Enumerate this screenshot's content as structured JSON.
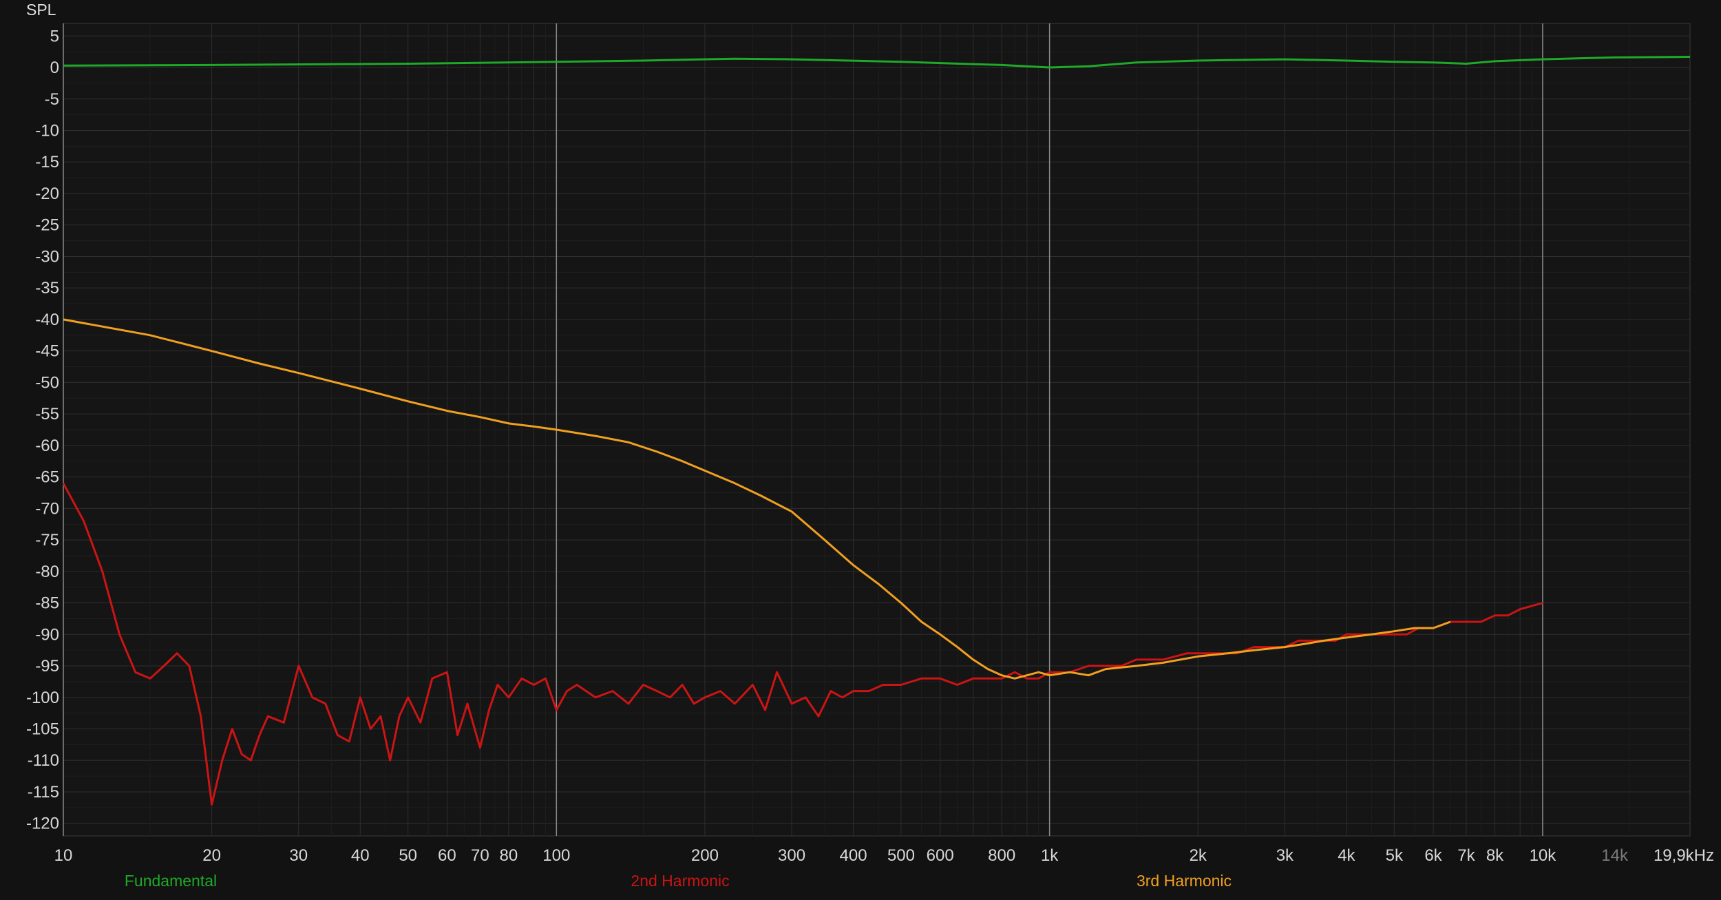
{
  "chart_data": {
    "type": "line",
    "ylabel": "SPL",
    "xscale": "log",
    "xlim": [
      10,
      19900
    ],
    "ylim": [
      -122,
      7
    ],
    "grid": true,
    "y_ticks": [
      5,
      0,
      -5,
      -10,
      -15,
      -20,
      -25,
      -30,
      -35,
      -40,
      -45,
      -50,
      -55,
      -60,
      -65,
      -70,
      -75,
      -80,
      -85,
      -90,
      -95,
      -100,
      -105,
      -110,
      -115,
      -120
    ],
    "x_ticks": [
      {
        "value": 10,
        "label": "10"
      },
      {
        "value": 20,
        "label": "20"
      },
      {
        "value": 30,
        "label": "30"
      },
      {
        "value": 40,
        "label": "40"
      },
      {
        "value": 50,
        "label": "50"
      },
      {
        "value": 60,
        "label": "60"
      },
      {
        "value": 70,
        "label": "70"
      },
      {
        "value": 80,
        "label": "80"
      },
      {
        "value": 100,
        "label": "100"
      },
      {
        "value": 200,
        "label": "200"
      },
      {
        "value": 300,
        "label": "300"
      },
      {
        "value": 400,
        "label": "400"
      },
      {
        "value": 500,
        "label": "500"
      },
      {
        "value": 600,
        "label": "600"
      },
      {
        "value": 800,
        "label": "800"
      },
      {
        "value": 1000,
        "label": "1k"
      },
      {
        "value": 2000,
        "label": "2k"
      },
      {
        "value": 3000,
        "label": "3k"
      },
      {
        "value": 4000,
        "label": "4k"
      },
      {
        "value": 5000,
        "label": "5k"
      },
      {
        "value": 6000,
        "label": "6k"
      },
      {
        "value": 7000,
        "label": "7k"
      },
      {
        "value": 8000,
        "label": "8k"
      },
      {
        "value": 10000,
        "label": "10k"
      },
      {
        "value": 14000,
        "label": "14k",
        "dim": true
      },
      {
        "value": 19900,
        "label": "19,9kHz"
      }
    ],
    "series": [
      {
        "name": "Fundamental",
        "color": "#1eaa28",
        "x": [
          10,
          20,
          50,
          100,
          150,
          230,
          300,
          500,
          800,
          1000,
          1200,
          1500,
          2000,
          3000,
          4000,
          5000,
          6000,
          6500,
          7000,
          8000,
          10000,
          14000,
          19900
        ],
        "y": [
          0.3,
          0.4,
          0.6,
          0.9,
          1.1,
          1.4,
          1.3,
          0.9,
          0.4,
          0.0,
          0.2,
          0.8,
          1.1,
          1.3,
          1.1,
          0.9,
          0.8,
          0.7,
          0.6,
          1.0,
          1.3,
          1.6,
          1.7
        ]
      },
      {
        "name": "2nd Harmonic",
        "color": "#cc1414",
        "x": [
          10,
          11,
          12,
          13,
          14,
          15,
          16,
          17,
          18,
          19,
          20,
          21,
          22,
          23,
          24,
          25,
          26,
          28,
          30,
          32,
          34,
          36,
          38,
          40,
          42,
          44,
          46,
          48,
          50,
          53,
          56,
          60,
          63,
          66,
          70,
          73,
          76,
          80,
          85,
          90,
          95,
          100,
          105,
          110,
          120,
          130,
          140,
          150,
          160,
          170,
          180,
          190,
          200,
          215,
          230,
          250,
          265,
          280,
          300,
          320,
          340,
          360,
          380,
          400,
          430,
          460,
          500,
          550,
          600,
          650,
          700,
          750,
          800,
          850,
          900,
          950,
          1000,
          1100,
          1200,
          1300,
          1400,
          1500,
          1700,
          1900,
          2000,
          2200,
          2400,
          2600,
          2800,
          3000,
          3200,
          3400,
          3600,
          3800,
          4000,
          4300,
          4600,
          5000,
          5300,
          5600,
          6000,
          6500,
          7000,
          7500,
          8000,
          8500,
          9000,
          10000
        ],
        "y": [
          -66,
          -72,
          -80,
          -90,
          -96,
          -97,
          -95,
          -93,
          -95,
          -103,
          -117,
          -110,
          -105,
          -109,
          -110,
          -106,
          -103,
          -104,
          -95,
          -100,
          -101,
          -106,
          -107,
          -100,
          -105,
          -103,
          -110,
          -103,
          -100,
          -104,
          -97,
          -96,
          -106,
          -101,
          -108,
          -102,
          -98,
          -100,
          -97,
          -98,
          -97,
          -102,
          -99,
          -98,
          -100,
          -99,
          -101,
          -98,
          -99,
          -100,
          -98,
          -101,
          -100,
          -99,
          -101,
          -98,
          -102,
          -96,
          -101,
          -100,
          -103,
          -99,
          -100,
          -99,
          -99,
          -98,
          -98,
          -97,
          -97,
          -98,
          -97,
          -97,
          -97,
          -96,
          -97,
          -97,
          -96,
          -96,
          -95,
          -95,
          -95,
          -94,
          -94,
          -93,
          -93,
          -93,
          -93,
          -92,
          -92,
          -92,
          -91,
          -91,
          -91,
          -91,
          -90,
          -90,
          -90,
          -90,
          -90,
          -89,
          -89,
          -88,
          -88,
          -88,
          -87,
          -87,
          -86,
          -85
        ]
      },
      {
        "name": "3rd Harmonic",
        "color": "#f0a020",
        "x": [
          10,
          15,
          20,
          25,
          30,
          40,
          50,
          60,
          70,
          80,
          90,
          100,
          120,
          140,
          160,
          180,
          200,
          230,
          260,
          300,
          350,
          400,
          450,
          500,
          550,
          600,
          650,
          700,
          750,
          800,
          850,
          900,
          950,
          1000,
          1100,
          1200,
          1300,
          1500,
          1700,
          2000,
          2300,
          2600,
          3000,
          3300,
          3600,
          4000,
          4500,
          5000,
          5500,
          6000,
          6500
        ],
        "y": [
          -40,
          -42.5,
          -45,
          -47,
          -48.5,
          -51,
          -53,
          -54.5,
          -55.5,
          -56.5,
          -57,
          -57.5,
          -58.5,
          -59.5,
          -61,
          -62.5,
          -64,
          -66,
          -68,
          -70.5,
          -75,
          -79,
          -82,
          -85,
          -88,
          -90,
          -92,
          -94,
          -95.5,
          -96.5,
          -97,
          -96.5,
          -96,
          -96.5,
          -96,
          -96.5,
          -95.5,
          -95,
          -94.5,
          -93.5,
          -93,
          -92.5,
          -92,
          -91.5,
          -91,
          -90.5,
          -90,
          -89.5,
          -89,
          -89,
          -88
        ]
      }
    ],
    "legend": {
      "placement": "bottom",
      "entries": [
        "Fundamental",
        "2nd Harmonic",
        "3rd Harmonic"
      ]
    }
  }
}
